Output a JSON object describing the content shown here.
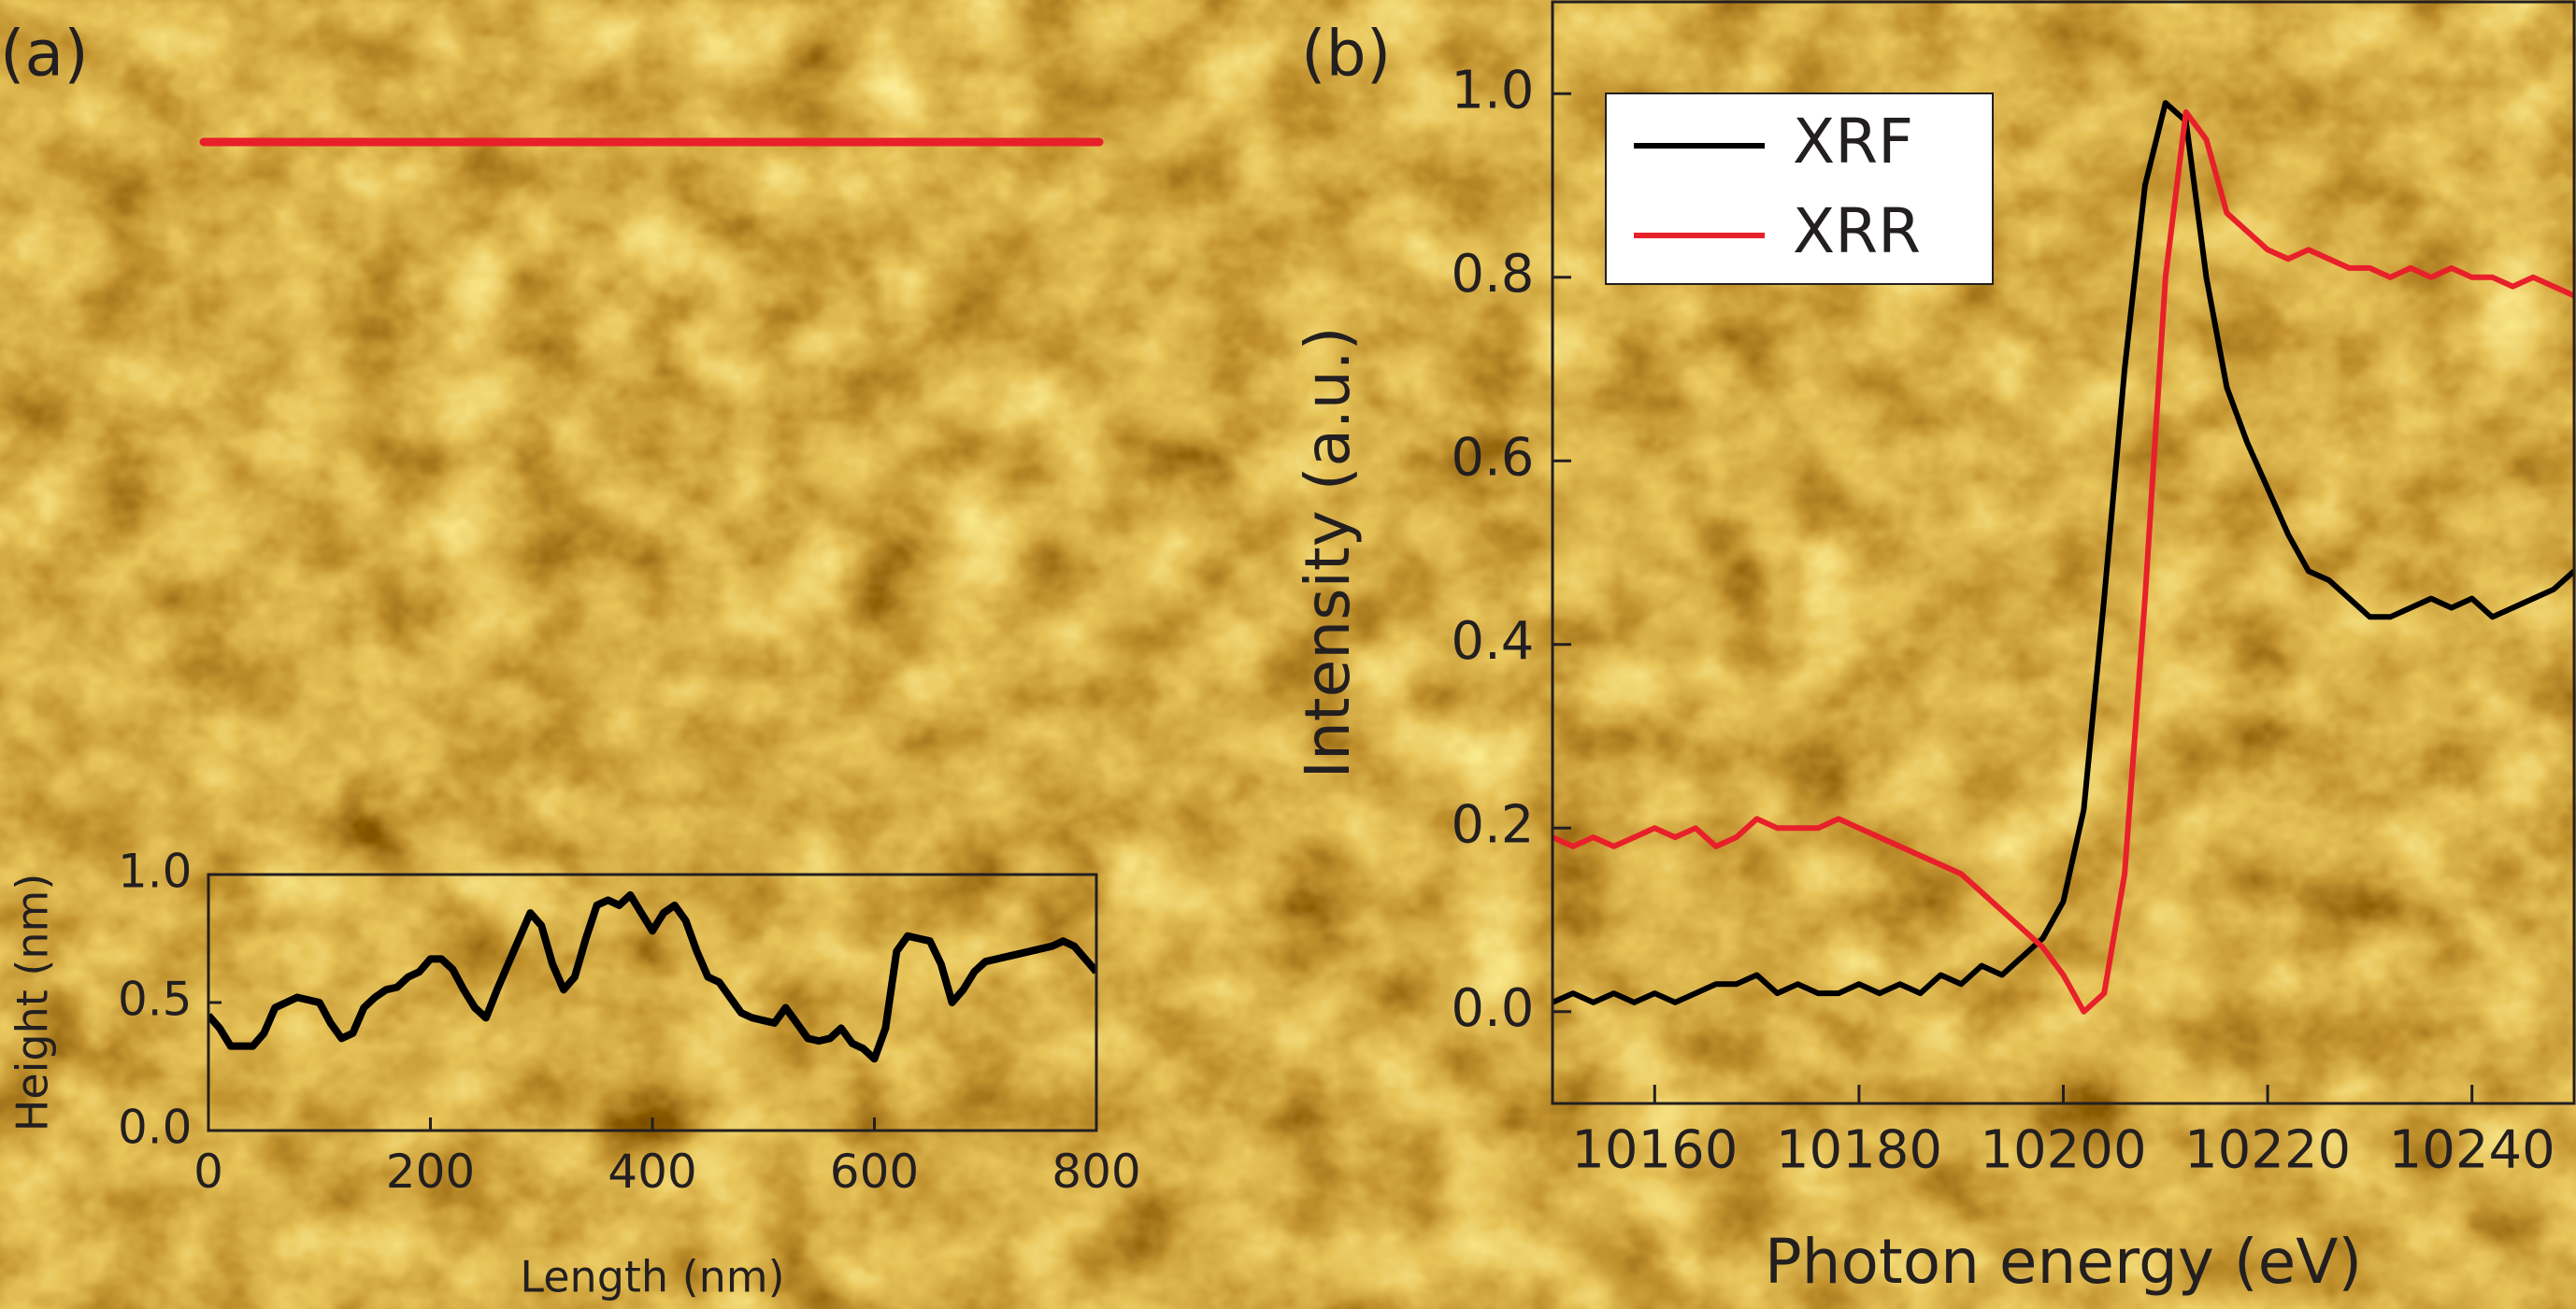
{
  "chart_data": [
    {
      "type": "line",
      "panel_label": "(a)",
      "xlabel": "Length (nm)",
      "ylabel": "Height (nm)",
      "xlim": [
        0,
        800
      ],
      "ylim": [
        0,
        1.0
      ],
      "xticks": [
        0,
        200,
        400,
        600,
        800
      ],
      "yticks": [
        {
          "value": 0,
          "label": "0.0"
        },
        0.5,
        {
          "value": 1,
          "label": "1.0"
        }
      ],
      "color": "#000000",
      "x": [
        0,
        10,
        20,
        40,
        50,
        60,
        80,
        100,
        110,
        120,
        130,
        140,
        150,
        160,
        170,
        180,
        190,
        200,
        210,
        220,
        230,
        240,
        250,
        260,
        270,
        280,
        290,
        300,
        310,
        320,
        330,
        340,
        350,
        360,
        370,
        380,
        390,
        400,
        410,
        420,
        430,
        440,
        450,
        460,
        470,
        480,
        490,
        500,
        510,
        520,
        530,
        540,
        550,
        560,
        570,
        580,
        590,
        600,
        610,
        620,
        630,
        640,
        650,
        660,
        670,
        680,
        690,
        700,
        720,
        740,
        760,
        770,
        780,
        800
      ],
      "values": [
        0.45,
        0.4,
        0.33,
        0.33,
        0.38,
        0.48,
        0.52,
        0.5,
        0.42,
        0.36,
        0.38,
        0.48,
        0.52,
        0.55,
        0.56,
        0.6,
        0.62,
        0.67,
        0.67,
        0.63,
        0.55,
        0.48,
        0.44,
        0.55,
        0.65,
        0.75,
        0.85,
        0.8,
        0.65,
        0.55,
        0.6,
        0.75,
        0.88,
        0.9,
        0.88,
        0.92,
        0.85,
        0.78,
        0.85,
        0.88,
        0.82,
        0.7,
        0.6,
        0.58,
        0.52,
        0.46,
        0.44,
        0.43,
        0.42,
        0.48,
        0.42,
        0.36,
        0.35,
        0.36,
        0.4,
        0.34,
        0.32,
        0.28,
        0.4,
        0.7,
        0.76,
        0.75,
        0.74,
        0.65,
        0.5,
        0.55,
        0.62,
        0.66,
        0.68,
        0.7,
        0.72,
        0.74,
        0.72,
        0.62
      ]
    },
    {
      "type": "line",
      "panel_label": "(b)",
      "xlabel": "Photon energy (eV)",
      "ylabel": "Intensity (a.u.)",
      "xlim": [
        10150,
        10250
      ],
      "ylim": [
        -0.1,
        1.1
      ],
      "xticks": [
        10160,
        10180,
        10200,
        10220,
        10240
      ],
      "yticks": [
        {
          "value": 0,
          "label": "0.0"
        },
        0.2,
        0.4,
        0.6,
        0.8,
        {
          "value": 1,
          "label": "1.0"
        }
      ],
      "legend": "upper left",
      "x": [
        10150,
        10152,
        10154,
        10156,
        10158,
        10160,
        10162,
        10164,
        10166,
        10168,
        10170,
        10172,
        10174,
        10176,
        10178,
        10180,
        10182,
        10184,
        10186,
        10188,
        10190,
        10192,
        10194,
        10196,
        10198,
        10200,
        10202,
        10204,
        10206,
        10208,
        10210,
        10212,
        10214,
        10216,
        10218,
        10220,
        10222,
        10224,
        10226,
        10228,
        10230,
        10232,
        10234,
        10236,
        10238,
        10240,
        10242,
        10244,
        10246,
        10248,
        10250
      ],
      "series": [
        {
          "name": "XRF",
          "color": "#000000",
          "values": [
            0.01,
            0.02,
            0.01,
            0.02,
            0.01,
            0.02,
            0.01,
            0.02,
            0.03,
            0.03,
            0.04,
            0.02,
            0.03,
            0.02,
            0.02,
            0.03,
            0.02,
            0.03,
            0.02,
            0.04,
            0.03,
            0.05,
            0.04,
            0.06,
            0.08,
            0.12,
            0.22,
            0.45,
            0.7,
            0.9,
            0.99,
            0.97,
            0.8,
            0.68,
            0.62,
            0.57,
            0.52,
            0.48,
            0.47,
            0.45,
            0.43,
            0.43,
            0.44,
            0.45,
            0.44,
            0.45,
            0.43,
            0.44,
            0.45,
            0.46,
            0.48
          ]
        },
        {
          "name": "XRR",
          "color": "#e8202a",
          "values": [
            0.19,
            0.18,
            0.19,
            0.18,
            0.19,
            0.2,
            0.19,
            0.2,
            0.18,
            0.19,
            0.21,
            0.2,
            0.2,
            0.2,
            0.21,
            0.2,
            0.19,
            0.18,
            0.17,
            0.16,
            0.15,
            0.13,
            0.11,
            0.09,
            0.07,
            0.04,
            0.0,
            0.02,
            0.15,
            0.45,
            0.8,
            0.98,
            0.95,
            0.87,
            0.85,
            0.83,
            0.82,
            0.83,
            0.82,
            0.81,
            0.81,
            0.8,
            0.81,
            0.8,
            0.81,
            0.8,
            0.8,
            0.79,
            0.8,
            0.79,
            0.78
          ]
        }
      ]
    }
  ]
}
